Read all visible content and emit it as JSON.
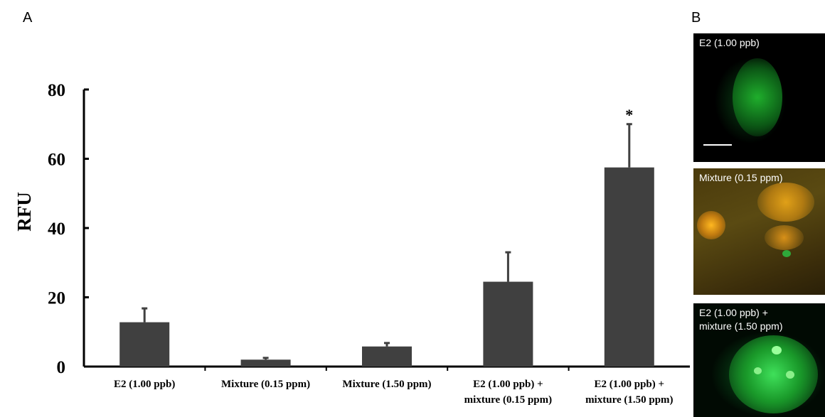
{
  "panel_labels": {
    "a": "A",
    "b": "B"
  },
  "chart_data": {
    "type": "bar",
    "categories": [
      [
        "E2 (1.00 ppb)"
      ],
      [
        "Mixture (0.15 ppm)"
      ],
      [
        "Mixture (1.50 ppm)"
      ],
      [
        "E2 (1.00 ppb) +",
        "mixture (0.15 ppm)"
      ],
      [
        "E2 (1.00 ppb) +",
        "mixture (1.50 ppm)"
      ]
    ],
    "values": [
      12.8,
      2.0,
      5.8,
      24.5,
      57.5
    ],
    "error_bars": [
      4.0,
      0.5,
      1.0,
      8.5,
      12.5
    ],
    "annotations": [
      "",
      "",
      "",
      "",
      "*"
    ],
    "ylabel": "RFU",
    "xlabel": "",
    "ylim": [
      0,
      80
    ],
    "yticks": [
      0,
      20,
      40,
      60,
      80
    ],
    "grid": false,
    "bar_color": "#404040"
  },
  "micrographs": [
    {
      "caption": "E2 (1.00 ppb)",
      "scale_bar": true
    },
    {
      "caption": "Mixture (0.15 ppm)",
      "scale_bar": false
    },
    {
      "caption": "E2 (1.00 ppb) +\nmixture (1.50 ppm)",
      "scale_bar": false
    }
  ]
}
